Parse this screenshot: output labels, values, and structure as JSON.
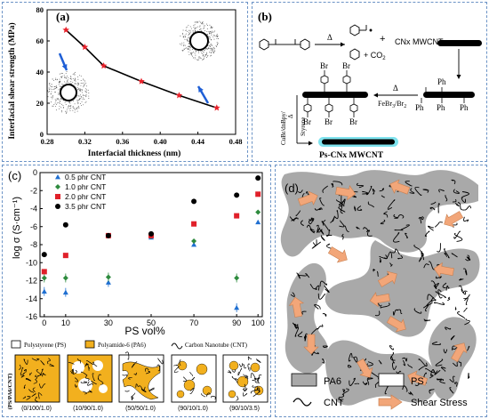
{
  "panels": {
    "a": {
      "letter": "(a)",
      "chart_data": {
        "type": "line",
        "x": [
          0.3,
          0.32,
          0.34,
          0.38,
          0.42,
          0.46
        ],
        "y": [
          67,
          56,
          44,
          34,
          25,
          17
        ],
        "xlabel": "Interfacial thickness (nm)",
        "ylabel": "Interfacial shear strength (MPa)",
        "xlim": [
          0.28,
          0.48
        ],
        "ylim": [
          0,
          80
        ],
        "xticks": [
          "0.28",
          "0.32",
          "0.36",
          "0.40",
          "0.44",
          "0.48"
        ],
        "yticks": [
          "0",
          "20",
          "40",
          "60",
          "80"
        ],
        "line_color": "#000000",
        "marker_color": "#e8212a",
        "arrow_color": "#1f5fd6",
        "grid": false
      }
    },
    "b": {
      "letter": "(b)",
      "delta": "Δ",
      "co2": "+ CO",
      "co2_sub": "2",
      "cnx_label": "CNx MWCNT",
      "fe_label": "FeBr",
      "fe_sub1": "3",
      "fe_br2": "/Br",
      "fe_sub2": "2",
      "cu_label": "CuBr/dnBpy/",
      "cu_delta": "Δ",
      "styrene": "Styrene",
      "ph": "Ph",
      "br": "Br",
      "ps_label": "Ps-CNx MWCNT"
    },
    "c": {
      "letter": "(c)",
      "chart_data": {
        "type": "scatter",
        "x": [
          0,
          10,
          30,
          50,
          70,
          90,
          100
        ],
        "xlabel": "PS vol%",
        "ylabel": "log σ (S·cm⁻¹)",
        "xlim": [
          -2,
          102
        ],
        "ylim": [
          -16,
          0
        ],
        "xticks": [
          "0",
          "10",
          "30",
          "50",
          "70",
          "90",
          "100"
        ],
        "yticks": [
          "-16",
          "-14",
          "-12",
          "-10",
          "-8",
          "-6",
          "-4",
          "-2",
          "0"
        ],
        "series": [
          {
            "name": "0.5 phr CNT",
            "marker": "triangle",
            "color": "#1f6fd1",
            "y": [
              -13.2,
              -13.3,
              -12.2,
              -7.2,
              -8.0,
              -15.0,
              -5.5
            ]
          },
          {
            "name": "1.0 phr CNT",
            "marker": "diamond",
            "color": "#2e8b3e",
            "y": [
              -11.7,
              -11.7,
              -11.6,
              -7.1,
              -7.6,
              -11.7,
              -4.4
            ]
          },
          {
            "name": "2.0 phr CNT",
            "marker": "square",
            "color": "#e0202a",
            "y": [
              -11.0,
              -9.2,
              -7.0,
              -7.0,
              -5.7,
              -4.8,
              -2.4
            ]
          },
          {
            "name": "3.5 phr CNT",
            "marker": "circle",
            "color": "#000000",
            "y": [
              -9.1,
              -5.8,
              -7.0,
              -6.8,
              -3.2,
              -2.5,
              -0.6
            ]
          }
        ]
      },
      "legend_ps": "Polystyrene (PS)",
      "legend_pa": "Polyamide-6 (PA6)",
      "legend_cnt": "Carbon Nanotube (CNT)",
      "side_label": "(PS/PA6/CNT)",
      "pa_color": "#f2b01e",
      "compositions": [
        "(0/100/1.0)",
        "(10/90/1.0)",
        "(50/50/1.0)",
        "(90/10/1.0)",
        "(90/10/3.5)"
      ]
    },
    "d": {
      "letter": "(d)",
      "legend_pa6": "PA6",
      "legend_ps": "PS",
      "legend_cnt": "CNT",
      "legend_shear": "Shear Stress",
      "pa6_color": "#a9a9a9",
      "arrow_color": "#f2a679"
    }
  }
}
